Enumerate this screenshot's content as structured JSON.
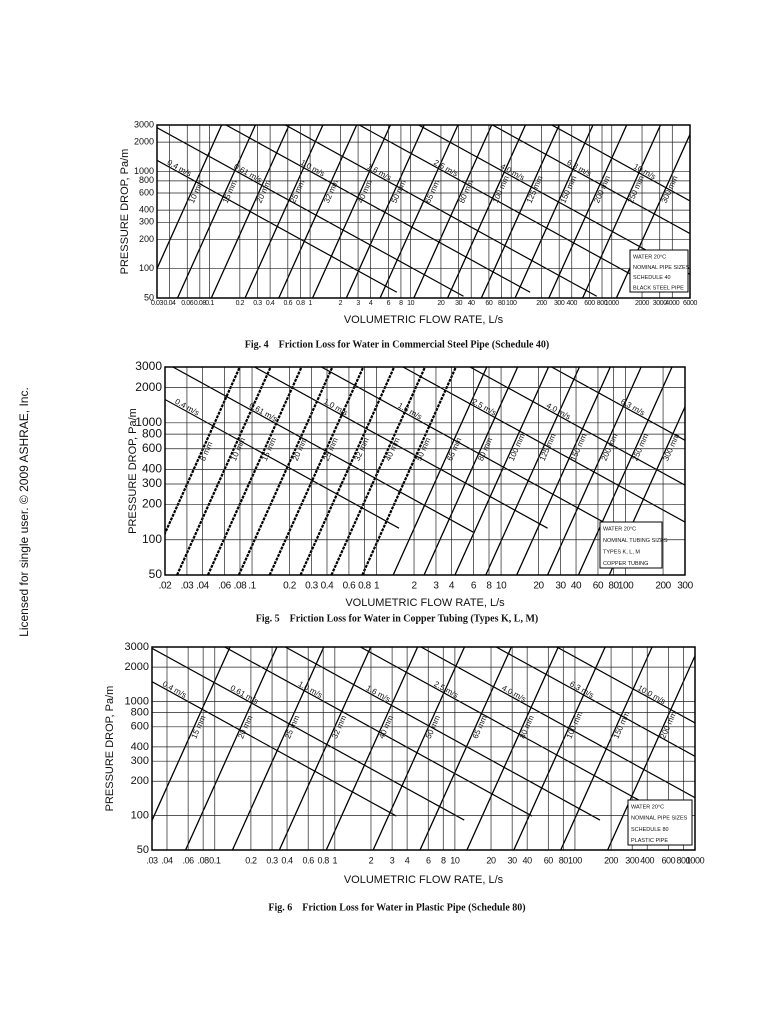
{
  "side_note": "Licensed for single user. © 2009 ASHRAE, Inc.",
  "figures": [
    {
      "caption": "Fig. 4    Friction Loss for Water in Commercial Steel Pipe (Schedule 40)",
      "x_label": "VOLUMETRIC FLOW RATE, L/s",
      "y_label": "PRESSURE DROP, Pa/m",
      "log_x": true,
      "log_y": true,
      "grid": true,
      "xlim": [
        0.03,
        6000
      ],
      "ylim": [
        50,
        3000
      ],
      "xticks": [
        0.03,
        0.04,
        0.06,
        0.08,
        0.1,
        0.2,
        0.3,
        0.4,
        0.6,
        0.8,
        1,
        2,
        3,
        4,
        6,
        8,
        10,
        20,
        30,
        40,
        60,
        80,
        100,
        200,
        300,
        400,
        600,
        800,
        1000,
        2000,
        3000,
        4000,
        6000
      ],
      "yticks": [
        50,
        100,
        200,
        300,
        400,
        600,
        800,
        1000,
        2000,
        3000
      ],
      "legend": [
        "WATER 20°C",
        "NOMINAL PIPE SIZES",
        "SCHEDULE 40",
        "BLACK STEEL PIPE"
      ],
      "pipe_labels": [
        "10 mm",
        "15 mm",
        "20 mm",
        "25 mm",
        "32 mm",
        "40 mm",
        "50 mm",
        "65 mm",
        "80 mm",
        "100 mm",
        "125 mm",
        "150 mm",
        "200 mm",
        "250 mm",
        "300 mm"
      ],
      "velocity_labels": [
        "0.4 m/s",
        "0.61 m/s",
        "1.0 m/s",
        "1.6 m/s",
        "2.5 m/s",
        "4.0 m/s",
        "6.3 m/s",
        "10 m/s"
      ]
    },
    {
      "caption": "Fig. 5    Friction Loss for Water in Copper Tubing (Types K, L, M)",
      "x_label": "VOLUMETRIC FLOW RATE, L/s",
      "y_label": "PRESSURE DROP, Pa/m",
      "log_x": true,
      "log_y": true,
      "grid": true,
      "xlim": [
        0.02,
        300
      ],
      "ylim": [
        50,
        3000
      ],
      "xticks": [
        {
          "value": 0.02,
          "label": ".02"
        },
        {
          "value": 0.03,
          "label": ".03"
        },
        {
          "value": 0.04,
          "label": ".04"
        },
        {
          "value": 0.06,
          "label": ".06"
        },
        {
          "value": 0.08,
          "label": ".08"
        },
        {
          "value": 0.1,
          "label": ".1"
        },
        0.2,
        0.3,
        0.4,
        0.6,
        0.8,
        1,
        2,
        3,
        4,
        6,
        8,
        10,
        20,
        30,
        40,
        60,
        80,
        100,
        200,
        300
      ],
      "yticks": [
        50,
        100,
        200,
        300,
        400,
        600,
        800,
        1000,
        2000,
        3000
      ],
      "legend": [
        "WATER 20°C",
        "NOMINAL TUBING SIZES",
        "TYPES K, L, M",
        "COPPER TUBING"
      ],
      "pipe_labels": [
        "8 mm",
        "10 mm",
        "15 mm",
        "20 mm",
        "25 mm",
        "32 mm",
        "40 mm",
        "50 mm",
        "65 mm",
        "80 mm",
        "100 mm",
        "125 mm",
        "150 mm",
        "200 mm",
        "250 mm",
        "300 mm"
      ],
      "velocity_labels": [
        "0.4 m/s",
        "0.61 m/s",
        "1.0 m/s",
        "1.6 m/s",
        "2.5 m/s",
        "4.0 m/s",
        "6.3 m/s"
      ]
    },
    {
      "caption": "Fig. 6    Friction Loss for Water in Plastic Pipe (Schedule 80)",
      "x_label": "VOLUMETRIC FLOW RATE, L/s",
      "y_label": "PRESSURE DROP, Pa/m",
      "log_x": true,
      "log_y": true,
      "grid": true,
      "xlim": [
        0.03,
        1000
      ],
      "ylim": [
        50,
        3000
      ],
      "xticks": [
        {
          "value": 0.03,
          "label": ".03"
        },
        {
          "value": 0.04,
          "label": ".04"
        },
        {
          "value": 0.06,
          "label": ".06"
        },
        {
          "value": 0.08,
          "label": ".08"
        },
        0.1,
        0.2,
        0.3,
        0.4,
        0.6,
        0.8,
        1,
        2,
        3,
        4,
        6,
        8,
        10,
        20,
        30,
        40,
        60,
        80,
        100,
        200,
        300,
        400,
        600,
        800,
        1000
      ],
      "yticks": [
        50,
        100,
        200,
        300,
        400,
        600,
        800,
        1000,
        2000,
        3000
      ],
      "legend": [
        "WATER 20°C",
        "NOMINAL PIPE SIZES",
        "SCHEDULE 80",
        "PLASTIC PIPE"
      ],
      "pipe_labels": [
        "15 mm",
        "20 mm",
        "25 mm",
        "32 mm",
        "40 mm",
        "50 mm",
        "65 mm",
        "80 mm",
        "100 mm",
        "150 mm",
        "200 mm"
      ],
      "velocity_labels": [
        "0.4 m/s",
        "0.61 m/s",
        "1.0 m/s",
        "1.6 m/s",
        "2.5 m/s",
        "4.0 m/s",
        "6.3 m/s",
        "10.0 m/s"
      ]
    }
  ]
}
